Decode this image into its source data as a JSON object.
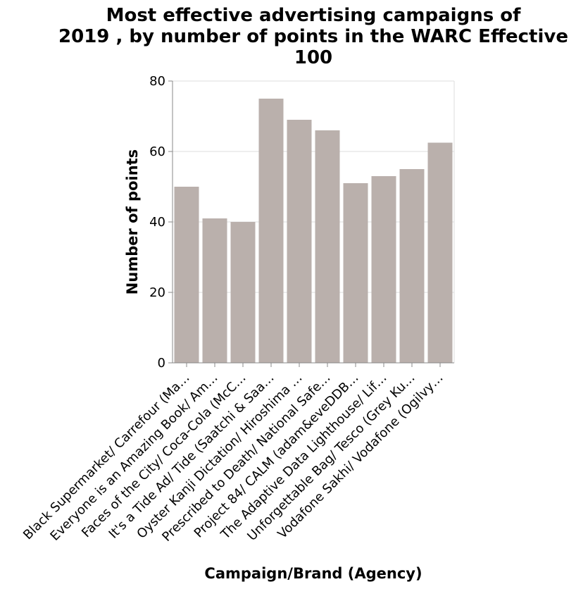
{
  "chart_data": {
    "type": "bar",
    "title": [
      "Most effective advertising campaigns of",
      "2019 , by number of points in the WARC Effective",
      "100"
    ],
    "xlabel": "Campaign/Brand (Agency)",
    "ylabel": "Number of points",
    "ylim": [
      0,
      80
    ],
    "yticks": [
      0,
      20,
      40,
      60,
      80
    ],
    "grid": true,
    "bar_color": "#bab0ac",
    "categories": [
      "Black Supermarket/ Carrefour (Ma…",
      "Everyone is an Amazing Book/ Am…",
      "Faces of the City/ Coca-Cola (McC…",
      "It's a Tide Ad/ Tide (Saatchi & Saa…",
      "Oyster Kanji Dictation/ Hiroshima …",
      "Prescribed to Death/ National Safe…",
      "Project 84/ CALM (adam&eveDDB…",
      "The Adaptive Data Lighthouse/ Lif…",
      "Unforgettable Bag/ Tesco (Grey Ku…",
      "Vodafone Sakhi/ Vodafone (Ogilvy…"
    ],
    "values": [
      50,
      41,
      40,
      75,
      69,
      66,
      51,
      53,
      55,
      62.5
    ]
  }
}
